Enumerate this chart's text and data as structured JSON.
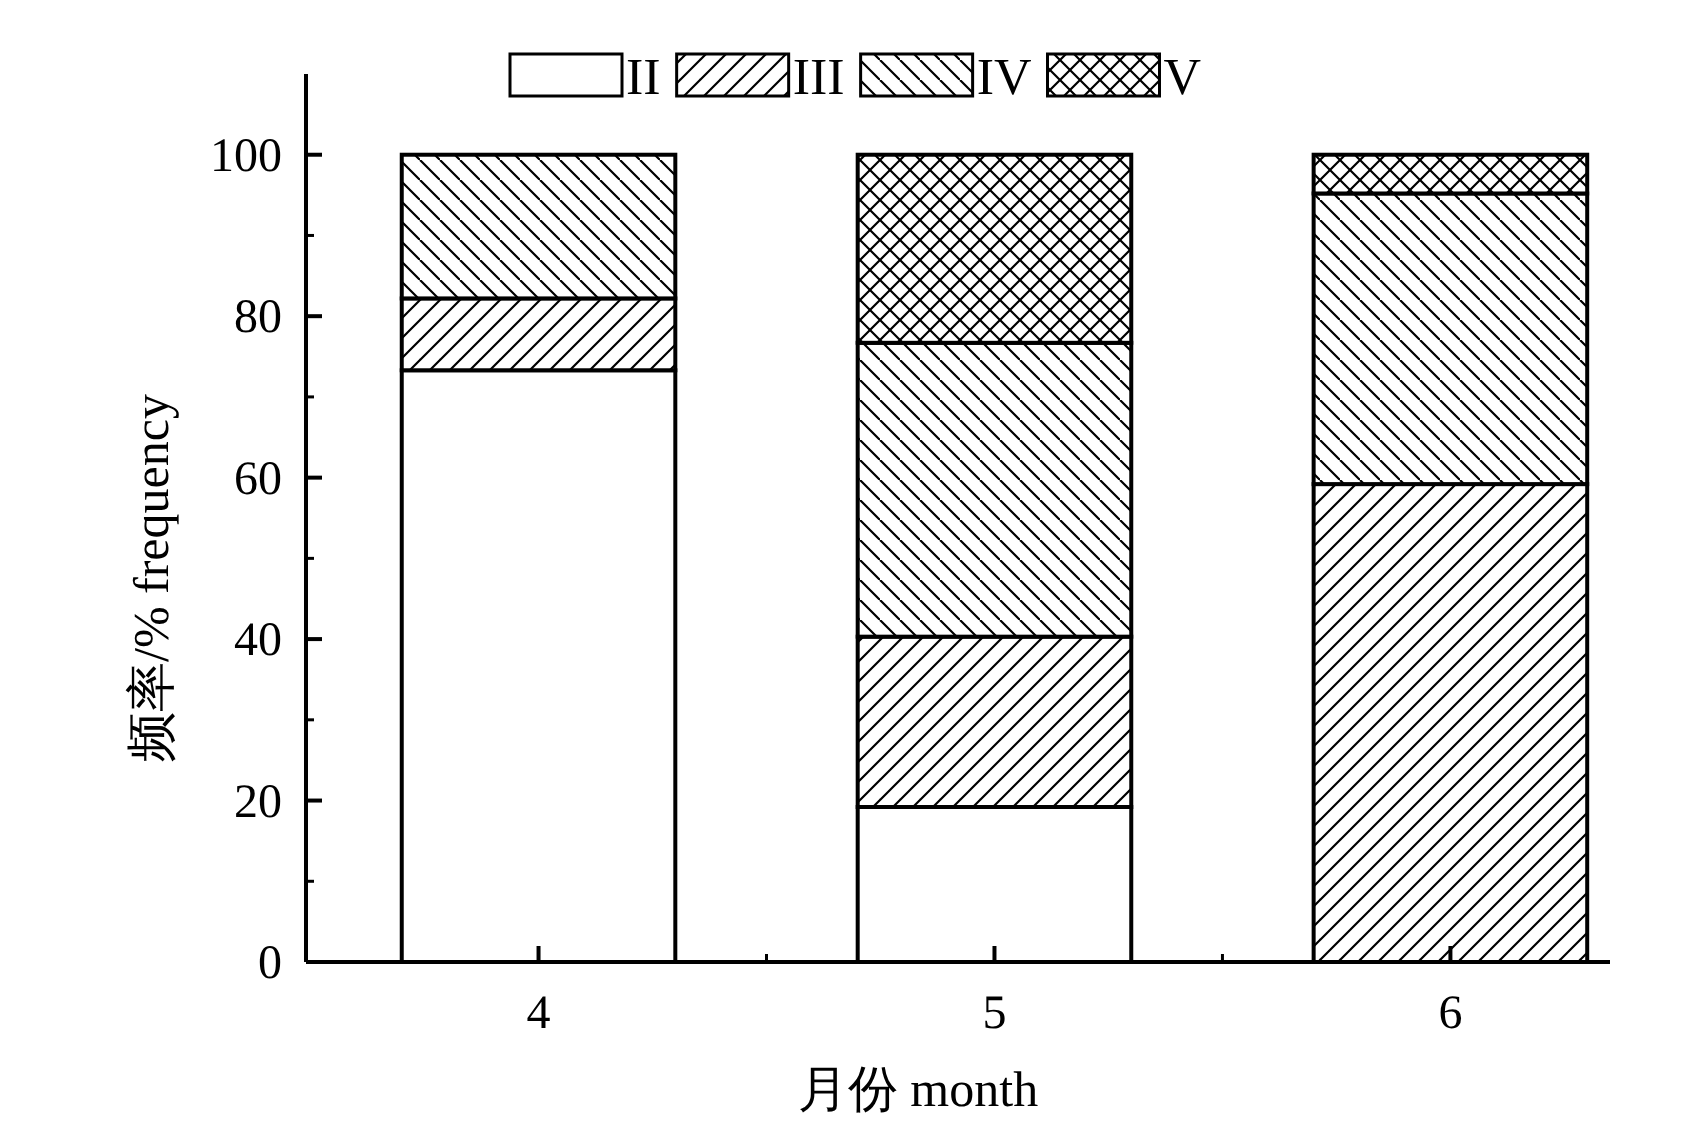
{
  "chart_data": {
    "type": "bar",
    "stacked": true,
    "xlabel": "月份 month",
    "ylabel": "频率/% frequency",
    "categories": [
      "4",
      "5",
      "6"
    ],
    "series": [
      {
        "name": "II",
        "values": [
          73.3,
          19.2,
          0
        ]
      },
      {
        "name": "III",
        "values": [
          8.9,
          21.1,
          59.2
        ]
      },
      {
        "name": "IV",
        "values": [
          17.8,
          36.4,
          36.0
        ]
      },
      {
        "name": "V",
        "values": [
          0,
          23.3,
          4.8
        ]
      }
    ],
    "ylim": [
      0,
      110
    ],
    "yticks": [
      0,
      20,
      40,
      60,
      80,
      100
    ],
    "legend": "top"
  }
}
